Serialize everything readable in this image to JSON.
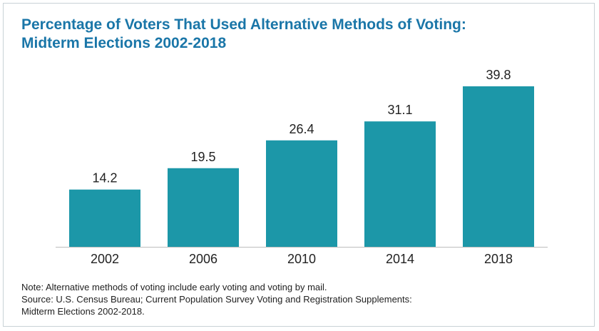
{
  "chart_data": {
    "type": "bar",
    "title": "Percentage of Voters That Used Alternative Methods of Voting: Midterm Elections 2002-2018",
    "title_lines": [
      "Percentage of Voters That Used Alternative Methods of Voting:",
      "Midterm Elections 2002-2018"
    ],
    "categories": [
      "2002",
      "2006",
      "2010",
      "2014",
      "2018"
    ],
    "values": [
      14.2,
      19.5,
      26.4,
      31.1,
      39.8
    ],
    "data_labels": [
      "14.2",
      "19.5",
      "26.4",
      "31.1",
      "39.8"
    ],
    "xlabel": "",
    "ylabel": "",
    "ylim": [
      0,
      39.8
    ],
    "grid": false,
    "legend": "none",
    "bar_color": "#1c97a8",
    "title_color": "#1a76a8"
  },
  "notes": {
    "lines": [
      "Note: Alternative methods of voting include early voting and voting by mail.",
      "Source: U.S. Census Bureau; Current Population Survey Voting and Registration Supplements:",
      "Midterm Elections 2002-2018."
    ]
  }
}
